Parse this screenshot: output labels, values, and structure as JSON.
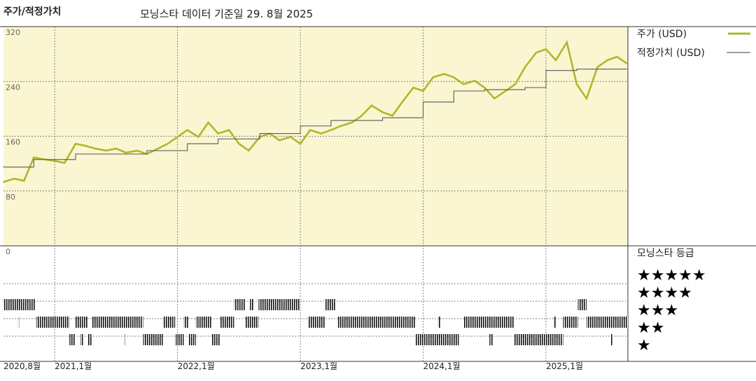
{
  "chart_data": [
    {
      "type": "line",
      "title": "주가/적정가치",
      "subtitle": "모닝스타 데이터 기준일 29. 8월 2025",
      "xlim": [
        2020.583,
        2025.667
      ],
      "xticks": [
        {
          "value": 2020.583,
          "label": "2020,8월"
        },
        {
          "value": 2021,
          "label": "2021,1월"
        },
        {
          "value": 2022,
          "label": "2022,1월"
        },
        {
          "value": 2023,
          "label": "2023,1월"
        },
        {
          "value": 2024,
          "label": "2024,1월"
        },
        {
          "value": 2025,
          "label": "2025,1월"
        }
      ],
      "ylim": [
        0,
        320
      ],
      "yticks": [
        0,
        80,
        160,
        240,
        320
      ],
      "grid": true,
      "background": "#fbf6d2",
      "series": [
        {
          "name": "주가 (USD)",
          "color": "#aeb82a",
          "step": false,
          "x": [
            2020.58,
            2020.67,
            2020.75,
            2020.83,
            2020.92,
            2021.0,
            2021.08,
            2021.17,
            2021.25,
            2021.33,
            2021.42,
            2021.5,
            2021.58,
            2021.67,
            2021.75,
            2021.83,
            2021.92,
            2022.0,
            2022.08,
            2022.17,
            2022.25,
            2022.33,
            2022.42,
            2022.5,
            2022.58,
            2022.67,
            2022.75,
            2022.83,
            2022.92,
            2023.0,
            2023.08,
            2023.17,
            2023.25,
            2023.33,
            2023.42,
            2023.5,
            2023.58,
            2023.67,
            2023.75,
            2023.83,
            2023.92,
            2024.0,
            2024.08,
            2024.17,
            2024.25,
            2024.33,
            2024.42,
            2024.5,
            2024.58,
            2024.67,
            2024.75,
            2024.83,
            2024.92,
            2025.0,
            2025.08,
            2025.17,
            2025.25,
            2025.33,
            2025.42,
            2025.5,
            2025.58,
            2025.66
          ],
          "values": [
            93,
            98,
            95,
            129,
            126,
            124,
            121,
            149,
            146,
            142,
            139,
            142,
            136,
            139,
            134,
            141,
            149,
            159,
            169,
            159,
            180,
            164,
            169,
            149,
            139,
            159,
            164,
            154,
            159,
            149,
            169,
            164,
            169,
            175,
            180,
            190,
            205,
            195,
            190,
            210,
            231,
            226,
            246,
            251,
            246,
            236,
            241,
            231,
            215,
            226,
            236,
            261,
            282,
            287,
            271,
            297,
            236,
            215,
            261,
            271,
            276,
            266
          ]
        },
        {
          "name": "적정가치 (USD)",
          "color": "#666666",
          "step": true,
          "x": [
            2020.58,
            2020.83,
            2021.17,
            2021.75,
            2022.08,
            2022.33,
            2022.67,
            2023.0,
            2023.25,
            2023.67,
            2024.0,
            2024.25,
            2024.5,
            2024.83,
            2025.0,
            2025.25,
            2025.66
          ],
          "values": [
            115,
            126,
            134,
            139,
            149,
            156,
            164,
            175,
            183,
            187,
            210,
            226,
            228,
            231,
            256,
            258,
            258
          ]
        }
      ]
    },
    {
      "type": "rating",
      "title": "모닝스타 등급",
      "rows": [
        {
          "label": "★★★★★"
        },
        {
          "label": "★★★★",
          "periods": [
            [
              2020.58,
              2020.84
            ],
            [
              2022.46,
              2022.55
            ],
            [
              2022.59,
              2022.62
            ],
            [
              2022.66,
              2023.0
            ],
            [
              2023.2,
              2023.29
            ],
            [
              2025.26,
              2025.33
            ]
          ]
        },
        {
          "label": "★★★",
          "periods": [
            [
              2020.7,
              2020.71
            ],
            [
              2020.85,
              2021.12
            ],
            [
              2021.17,
              2021.27
            ],
            [
              2021.3,
              2021.72
            ],
            [
              2021.88,
              2021.98
            ],
            [
              2022.05,
              2022.09
            ],
            [
              2022.15,
              2022.28
            ],
            [
              2022.35,
              2022.46
            ],
            [
              2022.55,
              2022.66
            ],
            [
              2023.06,
              2023.2
            ],
            [
              2023.3,
              2023.94
            ],
            [
              2024.12,
              2024.14
            ],
            [
              2024.33,
              2024.74
            ],
            [
              2025.06,
              2025.08
            ],
            [
              2025.14,
              2025.26
            ],
            [
              2025.33,
              2025.67
            ]
          ]
        },
        {
          "label": "★★",
          "periods": [
            [
              2021.12,
              2021.17
            ],
            [
              2021.21,
              2021.23
            ],
            [
              2021.27,
              2021.3
            ],
            [
              2021.57,
              2021.58
            ],
            [
              2021.72,
              2021.88
            ],
            [
              2021.98,
              2022.05
            ],
            [
              2022.09,
              2022.15
            ],
            [
              2022.28,
              2022.35
            ],
            [
              2023.94,
              2024.29
            ],
            [
              2024.54,
              2024.57
            ],
            [
              2024.74,
              2025.14
            ],
            [
              2025.53,
              2025.54
            ]
          ]
        },
        {
          "label": "★"
        }
      ]
    }
  ]
}
